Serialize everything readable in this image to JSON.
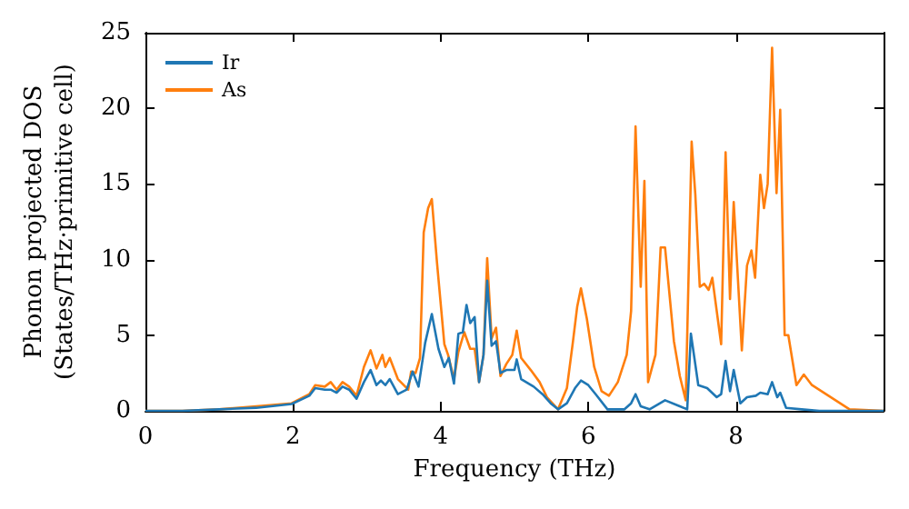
{
  "chart_data": {
    "type": "line",
    "xlabel": "Frequency (THz)",
    "ylabel": "Phonon projected DOS\n(States/THz·primitive cell)",
    "xlim": [
      0,
      10
    ],
    "xticks": [
      0,
      2,
      4,
      6,
      8
    ],
    "ylim": [
      0,
      25
    ],
    "yticks": [
      0,
      5,
      10,
      15,
      20,
      25
    ],
    "grid": false,
    "legend": "top left",
    "marker": "none",
    "line_style": "solid",
    "series": [
      {
        "name": "Ir",
        "color": "#1f77b4",
        "x": [
          0,
          0.5,
          1.0,
          1.5,
          1.98,
          2.22,
          2.3,
          2.43,
          2.51,
          2.59,
          2.67,
          2.76,
          2.86,
          2.96,
          3.05,
          3.13,
          3.19,
          3.25,
          3.31,
          3.42,
          3.54,
          3.62,
          3.7,
          3.79,
          3.88,
          3.97,
          4.05,
          4.11,
          4.18,
          4.24,
          4.3,
          4.35,
          4.4,
          4.46,
          4.52,
          4.58,
          4.63,
          4.69,
          4.75,
          4.81,
          4.89,
          5.0,
          5.03,
          5.09,
          5.26,
          5.38,
          5.49,
          5.59,
          5.71,
          5.82,
          5.9,
          6.0,
          6.1,
          6.26,
          6.49,
          6.58,
          6.64,
          6.71,
          6.83,
          7.04,
          7.24,
          7.34,
          7.39,
          7.49,
          7.61,
          7.74,
          7.8,
          7.86,
          7.92,
          7.97,
          8.06,
          8.15,
          8.27,
          8.33,
          8.43,
          8.49,
          8.56,
          8.6,
          8.68,
          8.89,
          9.13,
          10
        ],
        "values": [
          0,
          0,
          0.1,
          0.2,
          0.45,
          1.0,
          1.5,
          1.4,
          1.4,
          1.2,
          1.6,
          1.4,
          0.8,
          1.9,
          2.7,
          1.7,
          2.0,
          1.7,
          2.1,
          1.1,
          1.4,
          2.6,
          1.6,
          4.5,
          6.4,
          4.1,
          2.9,
          3.5,
          1.8,
          5.1,
          5.2,
          7.0,
          5.8,
          6.2,
          1.9,
          3.7,
          8.6,
          4.3,
          4.6,
          2.5,
          2.7,
          2.7,
          3.4,
          2.1,
          1.6,
          1.1,
          0.5,
          0.1,
          0.5,
          1.5,
          2.0,
          1.7,
          1.1,
          0.1,
          0.1,
          0.5,
          1.1,
          0.3,
          0.1,
          0.7,
          0.3,
          0.1,
          5.1,
          1.7,
          1.5,
          0.9,
          1.1,
          3.3,
          1.3,
          2.7,
          0.5,
          0.9,
          1.0,
          1.2,
          1.1,
          1.9,
          0.9,
          1.2,
          0.2,
          0.1,
          0,
          0
        ]
      },
      {
        "name": "As",
        "color": "#ff7f0e",
        "x": [
          0,
          0.5,
          1.0,
          1.5,
          1.98,
          2.22,
          2.3,
          2.43,
          2.51,
          2.59,
          2.67,
          2.76,
          2.86,
          2.96,
          3.05,
          3.13,
          3.21,
          3.25,
          3.31,
          3.42,
          3.56,
          3.6,
          3.66,
          3.72,
          3.77,
          3.83,
          3.88,
          3.95,
          4.05,
          4.1,
          4.18,
          4.24,
          4.32,
          4.4,
          4.46,
          4.52,
          4.58,
          4.63,
          4.69,
          4.75,
          4.81,
          4.89,
          4.97,
          5.03,
          5.09,
          5.22,
          5.34,
          5.44,
          5.59,
          5.71,
          5.79,
          5.85,
          5.9,
          5.98,
          6.08,
          6.18,
          6.28,
          6.4,
          6.52,
          6.58,
          6.64,
          6.71,
          6.76,
          6.81,
          6.91,
          6.98,
          7.04,
          7.16,
          7.24,
          7.32,
          7.4,
          7.45,
          7.51,
          7.57,
          7.63,
          7.68,
          7.8,
          7.86,
          7.92,
          7.97,
          8.08,
          8.15,
          8.21,
          8.26,
          8.33,
          8.38,
          8.43,
          8.49,
          8.55,
          8.6,
          8.66,
          8.71,
          8.82,
          8.92,
          9.03,
          9.54,
          10
        ],
        "values": [
          0,
          0,
          0.1,
          0.3,
          0.5,
          1.1,
          1.7,
          1.6,
          1.9,
          1.4,
          1.9,
          1.6,
          1.0,
          2.9,
          4.0,
          2.8,
          3.7,
          2.9,
          3.5,
          2.1,
          1.4,
          2.6,
          2.5,
          3.5,
          11.8,
          13.4,
          14.0,
          9.8,
          4.4,
          3.7,
          2.1,
          3.9,
          5.2,
          4.1,
          4.1,
          1.9,
          3.7,
          10.1,
          4.8,
          5.5,
          2.3,
          3.1,
          3.7,
          5.3,
          3.5,
          2.7,
          1.9,
          0.9,
          0.1,
          1.5,
          4.5,
          6.9,
          8.1,
          6.1,
          2.9,
          1.3,
          1.0,
          1.9,
          3.7,
          6.6,
          18.8,
          8.2,
          15.2,
          1.9,
          3.7,
          10.8,
          10.8,
          4.6,
          2.3,
          0.7,
          17.8,
          14.3,
          8.2,
          8.4,
          8.0,
          8.8,
          4.4,
          17.1,
          7.4,
          13.8,
          4.0,
          9.6,
          10.6,
          8.8,
          15.6,
          13.4,
          15.0,
          24.0,
          14.4,
          19.9,
          5.0,
          5.0,
          1.7,
          2.4,
          1.7,
          0.1,
          0
        ]
      }
    ]
  }
}
